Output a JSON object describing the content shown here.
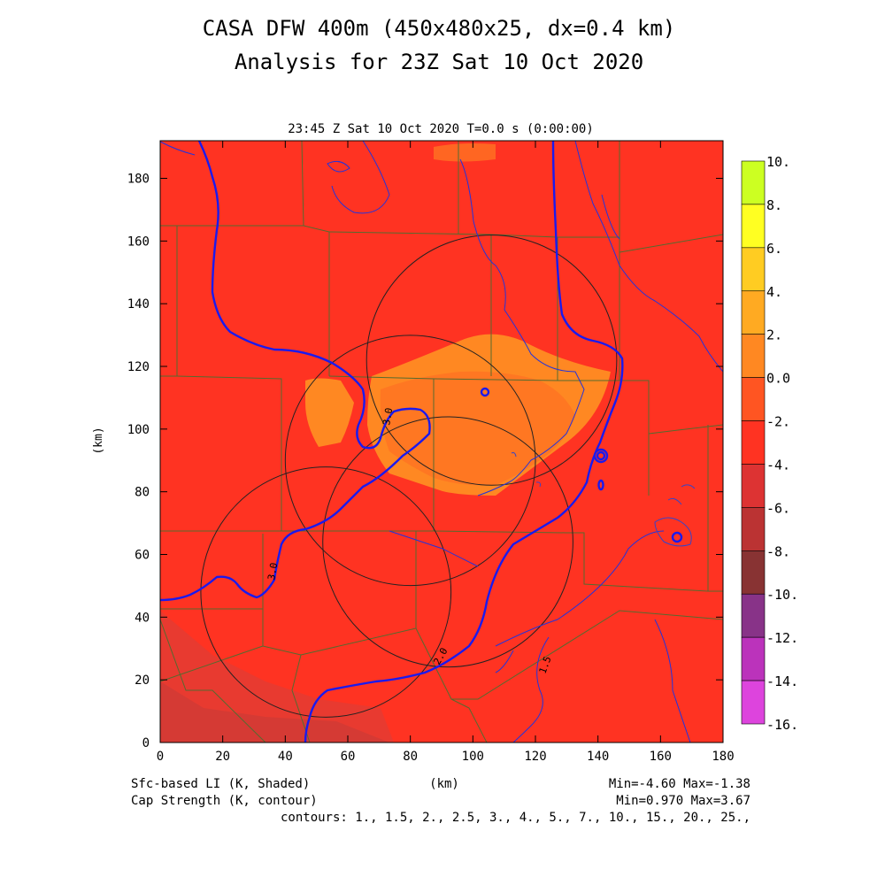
{
  "title_line1": "CASA DFW 400m (450x480x25, dx=0.4 km)",
  "title_line2": "Analysis for 23Z Sat 10 Oct 2020",
  "subtitle": "23:45 Z Sat 10 Oct 2020   T=0.0 s (0:00:00)",
  "x_axis": {
    "label": "(km)",
    "ticks": [
      "0",
      "20",
      "40",
      "60",
      "80",
      "100",
      "120",
      "140",
      "160",
      "180"
    ],
    "range": [
      0,
      180
    ]
  },
  "y_axis": {
    "label": "(km)",
    "ticks": [
      "0",
      "20",
      "40",
      "60",
      "80",
      "100",
      "120",
      "140",
      "160",
      "180"
    ],
    "range": [
      0,
      192
    ]
  },
  "colorbar": {
    "labels": [
      "10.",
      "8.",
      "6.",
      "4.",
      "2.",
      "0.0",
      "-2.",
      "-4.",
      "-6.",
      "-8.",
      "-10.",
      "-12.",
      "-14.",
      "-16."
    ],
    "colors": [
      "#99dd22",
      "#ccff22",
      "#ffff22",
      "#ffcc22",
      "#ffaa22",
      "#ff8822",
      "#ff5522",
      "#ff3322",
      "#dd3333",
      "#bb3333",
      "#883333",
      "#883388",
      "#bb33bb",
      "#dd44dd"
    ]
  },
  "contour_labels": [
    "3.0",
    "3.0",
    "2.0",
    "1.5"
  ],
  "footer": {
    "left1": "Sfc-based LI (K, Shaded)",
    "left2": "Cap Strength (K, contour)",
    "center": "(km)",
    "right1": "Min=-4.60 Max=-1.38",
    "right2": "Min=0.970 Max=3.67",
    "contours": "contours: 1., 1.5, 2., 2.5, 3., 4., 5., 7., 10., 15., 20., 25.,"
  },
  "radar_circles": [
    {
      "cx_km": 80,
      "cy_km": 90,
      "r_km": 40
    },
    {
      "cx_km": 106,
      "cy_km": 122,
      "r_km": 40
    },
    {
      "cx_km": 92,
      "cy_km": 64,
      "r_km": 40
    },
    {
      "cx_km": 53,
      "cy_km": 48,
      "r_km": 40
    }
  ]
}
